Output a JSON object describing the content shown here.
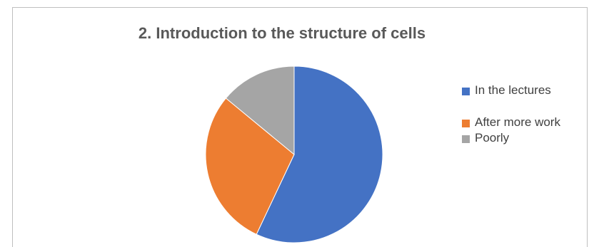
{
  "chart_data": {
    "type": "pie",
    "title": "2. Introduction to the structure of cells",
    "categories": [
      "In the lectures",
      "After more work",
      "Poorly"
    ],
    "values": [
      57,
      29,
      14
    ],
    "colors": [
      "#4472c4",
      "#ed7d31",
      "#a5a5a5"
    ],
    "start_angle_deg": 0,
    "direction": "clockwise",
    "legend_position": "right"
  }
}
